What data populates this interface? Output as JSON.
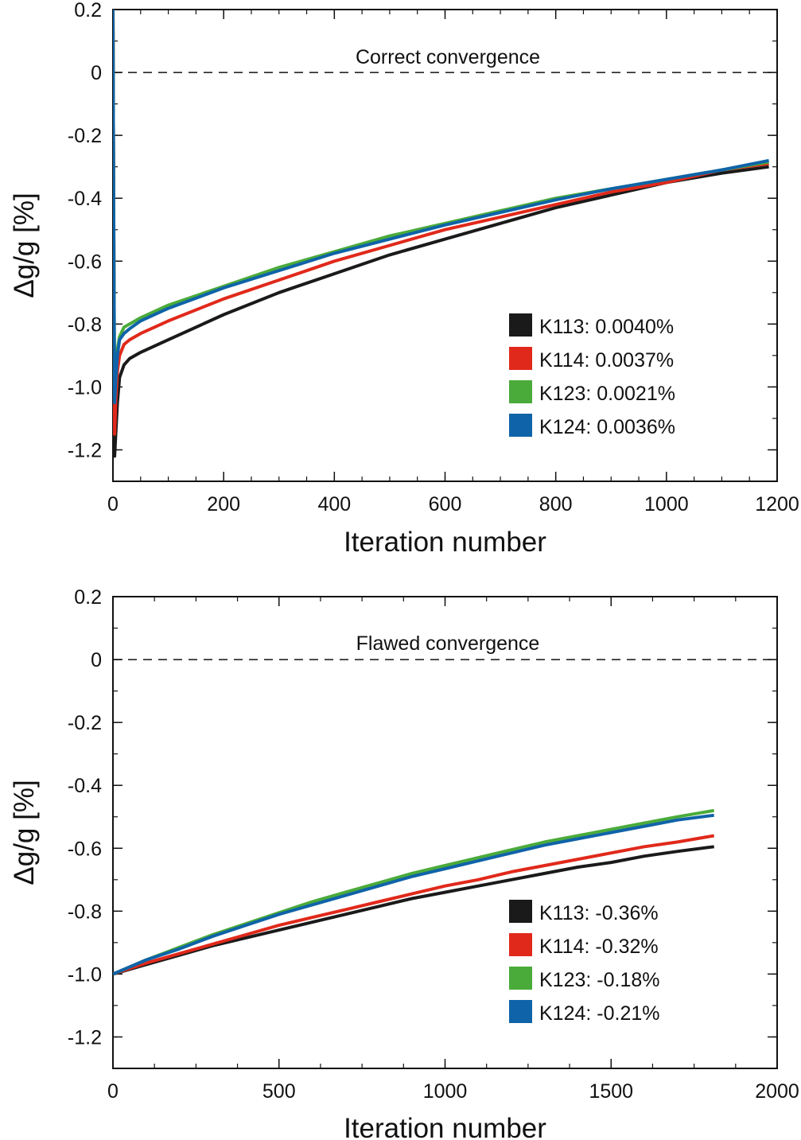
{
  "chart_data": [
    {
      "type": "line",
      "title": "",
      "xlabel": "Iteration number",
      "ylabel": "Δg/g [%]",
      "xlim": [
        0,
        1200
      ],
      "ylim": [
        -1.3,
        0.2
      ],
      "xticks": [
        0,
        200,
        400,
        600,
        800,
        1000,
        1200
      ],
      "yticks": [
        0.2,
        0,
        -0.2,
        -0.4,
        -0.6,
        -0.8,
        -1.0,
        -1.2
      ],
      "ytick_labels": [
        "0.2",
        "0",
        "-0.2",
        "-0.4",
        "-0.6",
        "-0.8",
        "-1.0",
        "-1.2"
      ],
      "reference_line": {
        "y": 0,
        "style": "dashed"
      },
      "annotation": "Correct convergence",
      "legend_position": "lower-right",
      "series": [
        {
          "name": "K113: 0.0040%",
          "color": "#1a1a1a",
          "x": [
            0,
            1,
            2,
            3,
            5,
            8,
            12,
            20,
            30,
            50,
            100,
            200,
            300,
            400,
            500,
            600,
            700,
            800,
            900,
            1000,
            1100,
            1185
          ],
          "y": [
            0.2,
            -0.3,
            -0.8,
            -1.22,
            -1.15,
            -1.05,
            -0.97,
            -0.93,
            -0.91,
            -0.89,
            -0.85,
            -0.77,
            -0.7,
            -0.64,
            -0.58,
            -0.53,
            -0.48,
            -0.43,
            -0.39,
            -0.35,
            -0.32,
            -0.3
          ]
        },
        {
          "name": "K114: 0.0037%",
          "color": "#e0291b",
          "x": [
            0,
            1,
            2,
            3,
            5,
            8,
            12,
            20,
            30,
            50,
            100,
            200,
            300,
            400,
            500,
            600,
            700,
            800,
            900,
            1000,
            1100,
            1185
          ],
          "y": [
            0.2,
            -0.3,
            -0.8,
            -1.15,
            -1.05,
            -0.95,
            -0.9,
            -0.865,
            -0.85,
            -0.83,
            -0.79,
            -0.72,
            -0.66,
            -0.6,
            -0.55,
            -0.5,
            -0.46,
            -0.42,
            -0.38,
            -0.35,
            -0.31,
            -0.29
          ]
        },
        {
          "name": "K123: 0.0021%",
          "color": "#4aab3a",
          "x": [
            0,
            1,
            2,
            3,
            5,
            8,
            12,
            20,
            30,
            50,
            100,
            200,
            300,
            400,
            500,
            600,
            700,
            800,
            900,
            1000,
            1100,
            1185
          ],
          "y": [
            0.2,
            -0.3,
            -0.7,
            -1.0,
            -0.95,
            -0.88,
            -0.84,
            -0.81,
            -0.8,
            -0.78,
            -0.74,
            -0.68,
            -0.62,
            -0.57,
            -0.52,
            -0.48,
            -0.44,
            -0.4,
            -0.37,
            -0.34,
            -0.31,
            -0.285
          ]
        },
        {
          "name": "K124: 0.0036%",
          "color": "#0f63a8",
          "x": [
            0,
            1,
            2,
            3,
            5,
            8,
            12,
            20,
            30,
            50,
            100,
            200,
            300,
            400,
            500,
            600,
            700,
            800,
            900,
            1000,
            1100,
            1185
          ],
          "y": [
            0.2,
            -0.3,
            -0.7,
            -1.05,
            -0.98,
            -0.9,
            -0.85,
            -0.83,
            -0.815,
            -0.79,
            -0.75,
            -0.685,
            -0.63,
            -0.575,
            -0.53,
            -0.485,
            -0.445,
            -0.405,
            -0.37,
            -0.34,
            -0.31,
            -0.28
          ]
        }
      ]
    },
    {
      "type": "line",
      "title": "",
      "xlabel": "Iteration number",
      "ylabel": "Δg/g [%]",
      "xlim": [
        0,
        2000
      ],
      "ylim": [
        -1.3,
        0.2
      ],
      "xticks": [
        0,
        500,
        1000,
        1500,
        2000
      ],
      "yticks": [
        0.2,
        0,
        -0.2,
        -0.4,
        -0.6,
        -0.8,
        -1.0,
        -1.2
      ],
      "ytick_labels": [
        "0.2",
        "0",
        "-0.2",
        "-0.4",
        "-0.6",
        "-0.8",
        "-1.0",
        "-1.2"
      ],
      "reference_line": {
        "y": 0,
        "style": "dashed"
      },
      "annotation": "Flawed convergence",
      "legend_position": "lower-right",
      "series": [
        {
          "name": "K113: -0.36%",
          "color": "#1a1a1a",
          "x": [
            0,
            100,
            200,
            300,
            400,
            500,
            600,
            700,
            800,
            900,
            1000,
            1100,
            1200,
            1300,
            1400,
            1500,
            1600,
            1700,
            1810
          ],
          "y": [
            -1.0,
            -0.97,
            -0.94,
            -0.91,
            -0.885,
            -0.86,
            -0.835,
            -0.81,
            -0.785,
            -0.76,
            -0.74,
            -0.72,
            -0.7,
            -0.68,
            -0.66,
            -0.645,
            -0.625,
            -0.61,
            -0.595
          ]
        },
        {
          "name": "K114: -0.32%",
          "color": "#e0291b",
          "x": [
            0,
            100,
            200,
            300,
            400,
            500,
            600,
            700,
            800,
            900,
            1000,
            1100,
            1200,
            1300,
            1400,
            1500,
            1600,
            1700,
            1810
          ],
          "y": [
            -1.0,
            -0.965,
            -0.935,
            -0.905,
            -0.875,
            -0.845,
            -0.82,
            -0.795,
            -0.77,
            -0.745,
            -0.72,
            -0.7,
            -0.675,
            -0.655,
            -0.635,
            -0.615,
            -0.595,
            -0.58,
            -0.56
          ]
        },
        {
          "name": "K123: -0.18%",
          "color": "#4aab3a",
          "x": [
            0,
            100,
            200,
            300,
            400,
            500,
            600,
            700,
            800,
            900,
            1000,
            1100,
            1200,
            1300,
            1400,
            1500,
            1600,
            1700,
            1810
          ],
          "y": [
            -1.0,
            -0.955,
            -0.915,
            -0.875,
            -0.84,
            -0.805,
            -0.77,
            -0.74,
            -0.71,
            -0.68,
            -0.655,
            -0.63,
            -0.605,
            -0.58,
            -0.56,
            -0.54,
            -0.52,
            -0.5,
            -0.48
          ]
        },
        {
          "name": "K124: -0.21%",
          "color": "#0f63a8",
          "x": [
            0,
            100,
            200,
            300,
            400,
            500,
            600,
            700,
            800,
            900,
            1000,
            1100,
            1200,
            1300,
            1400,
            1500,
            1600,
            1700,
            1810
          ],
          "y": [
            -1.0,
            -0.955,
            -0.92,
            -0.88,
            -0.845,
            -0.81,
            -0.78,
            -0.75,
            -0.72,
            -0.69,
            -0.665,
            -0.64,
            -0.615,
            -0.59,
            -0.57,
            -0.55,
            -0.53,
            -0.51,
            -0.495
          ]
        }
      ]
    }
  ]
}
